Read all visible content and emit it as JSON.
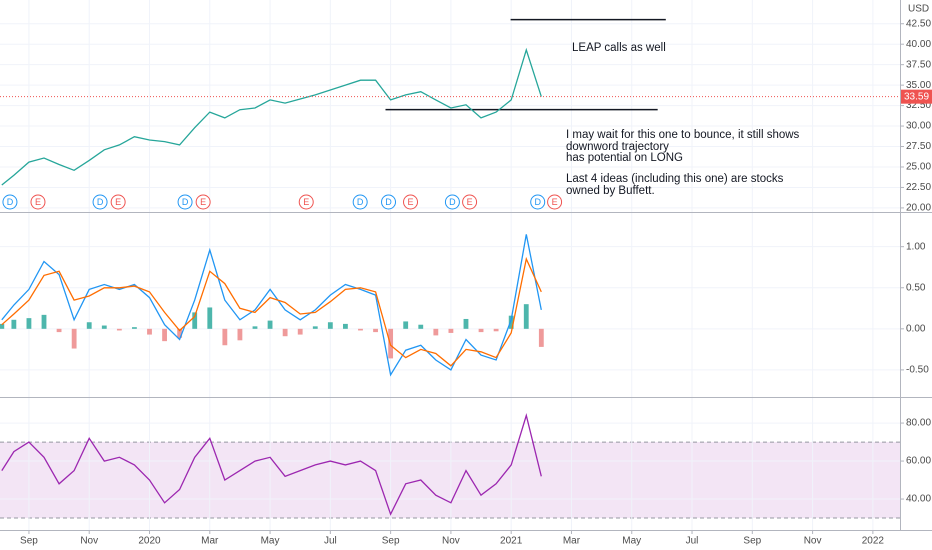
{
  "chart_data": [
    {
      "type": "line",
      "currency": "USD",
      "x": [
        -0.9,
        -0.5,
        0,
        0.5,
        1,
        1.5,
        2,
        2.5,
        3,
        3.5,
        4,
        4.5,
        5,
        5.5,
        6,
        6.5,
        7,
        7.5,
        8,
        8.5,
        9,
        9.5,
        10,
        10.5,
        11,
        11.5,
        12,
        12.5,
        13,
        13.5,
        14,
        14.5,
        15,
        15.5,
        16,
        16.5,
        17
      ],
      "series": [
        {
          "color": "#26a69a",
          "values": [
            22.8,
            24.0,
            25.6,
            26.1,
            25.3,
            24.6,
            25.8,
            27.1,
            27.7,
            28.7,
            28.3,
            28.1,
            27.7,
            29.8,
            31.7,
            31.0,
            32.0,
            32.2,
            33.2,
            32.8,
            33.3,
            33.8,
            34.4,
            35.0,
            35.6,
            35.6,
            33.2,
            33.8,
            34.2,
            33.2,
            32.2,
            32.6,
            31.0,
            31.7,
            33.2,
            39.3,
            33.6
          ]
        }
      ],
      "xlim": [
        -0.96,
        28.9
      ],
      "ylim": [
        19.5,
        45.4
      ],
      "yticks": [
        {
          "value": 20,
          "label": "20.00"
        },
        {
          "value": 22.5,
          "label": "22.50"
        },
        {
          "value": 25,
          "label": "25.00"
        },
        {
          "value": 27.5,
          "label": "27.50"
        },
        {
          "value": 30,
          "label": "30.00"
        },
        {
          "value": 32.5,
          "label": "32.50"
        },
        {
          "value": 35,
          "label": "35.00"
        },
        {
          "value": 37.5,
          "label": "37.50"
        },
        {
          "value": 40,
          "label": "40.00"
        },
        {
          "value": 42.5,
          "label": "42.50"
        }
      ],
      "last_value": 33.59,
      "last_color": "#ef5350",
      "hlines": [
        {
          "value": 43.0,
          "x": [
            15.98,
            21.13
          ]
        },
        {
          "value": 32.0,
          "x": [
            11.83,
            20.86
          ]
        }
      ],
      "events": [
        {
          "label": "D",
          "x": -0.63
        },
        {
          "label": "E",
          "x": 0.3
        },
        {
          "label": "D",
          "x": 2.36
        },
        {
          "label": "E",
          "x": 2.96
        },
        {
          "label": "D",
          "x": 5.18
        },
        {
          "label": "E",
          "x": 5.78
        },
        {
          "label": "E",
          "x": 9.2
        },
        {
          "label": "D",
          "x": 10.99
        },
        {
          "label": "D",
          "x": 11.93
        },
        {
          "label": "E",
          "x": 12.66
        },
        {
          "label": "D",
          "x": 14.05
        },
        {
          "label": "E",
          "x": 14.62
        },
        {
          "label": "D",
          "x": 16.88
        },
        {
          "label": "E",
          "x": 17.44
        }
      ],
      "event_colors": {
        "D": "#2196f3",
        "E": "#ef5350"
      },
      "annotations": [
        "LEAP calls as well",
        "I may wait for this one to bounce, it still shows",
        "downword trajectory",
        "has potential on LONG",
        "Last 4 ideas (including this one) are stocks",
        "owned by Buffett."
      ],
      "grid": true
    },
    {
      "type": "line",
      "x": [
        -0.9,
        -0.5,
        0,
        0.5,
        1,
        1.5,
        2,
        2.5,
        3,
        3.5,
        4,
        4.5,
        5,
        5.5,
        6,
        6.5,
        7,
        7.5,
        8,
        8.5,
        9,
        9.5,
        10,
        10.5,
        11,
        11.5,
        12,
        12.5,
        13,
        13.5,
        14,
        14.5,
        15,
        15.5,
        16,
        16.5,
        17
      ],
      "series": [
        {
          "color": "#2196f3",
          "values": [
            0.11,
            0.29,
            0.48,
            0.82,
            0.66,
            0.11,
            0.48,
            0.54,
            0.48,
            0.54,
            0.38,
            0.05,
            -0.13,
            0.35,
            0.96,
            0.35,
            0.11,
            0.23,
            0.48,
            0.23,
            0.11,
            0.23,
            0.41,
            0.54,
            0.48,
            0.41,
            -0.56,
            -0.26,
            -0.2,
            -0.38,
            -0.5,
            -0.13,
            -0.32,
            -0.38,
            0.11,
            1.15,
            0.23
          ]
        },
        {
          "color": "#ff6d00",
          "values": [
            0.05,
            0.18,
            0.35,
            0.65,
            0.7,
            0.35,
            0.4,
            0.5,
            0.5,
            0.52,
            0.45,
            0.2,
            -0.02,
            0.15,
            0.7,
            0.55,
            0.25,
            0.2,
            0.38,
            0.32,
            0.18,
            0.2,
            0.33,
            0.48,
            0.5,
            0.45,
            -0.2,
            -0.35,
            -0.25,
            -0.3,
            -0.45,
            -0.25,
            -0.28,
            -0.35,
            -0.05,
            0.85,
            0.45
          ]
        }
      ],
      "histogram": {
        "values": [
          0.06,
          0.11,
          0.13,
          0.17,
          -0.04,
          -0.24,
          0.08,
          0.04,
          -0.02,
          0.02,
          -0.07,
          -0.15,
          -0.11,
          0.2,
          0.26,
          -0.2,
          -0.14,
          0.03,
          0.1,
          -0.09,
          -0.07,
          0.03,
          0.08,
          0.06,
          -0.02,
          -0.04,
          -0.36,
          0.09,
          0.05,
          -0.08,
          -0.05,
          0.12,
          -0.04,
          -0.03,
          0.16,
          0.3,
          -0.22
        ],
        "up_color": "#4db6ac",
        "down_color": "#ef9a9a"
      },
      "xlim": [
        -0.96,
        28.9
      ],
      "ylim": [
        -0.83,
        1.41
      ],
      "yticks": [
        {
          "value": 1,
          "label": "1.00"
        },
        {
          "value": 0.5,
          "label": "0.50"
        },
        {
          "value": 0,
          "label": "0.00"
        },
        {
          "value": -0.5,
          "label": "-0.50"
        }
      ],
      "grid": true
    },
    {
      "type": "line",
      "x": [
        -0.9,
        -0.5,
        0,
        0.5,
        1,
        1.5,
        2,
        2.5,
        3,
        3.5,
        4,
        4.5,
        5,
        5.5,
        6,
        6.5,
        7,
        7.5,
        8,
        8.5,
        9,
        9.5,
        10,
        10.5,
        11,
        11.5,
        12,
        12.5,
        13,
        13.5,
        14,
        14.5,
        15,
        15.5,
        16,
        16.5,
        17
      ],
      "series": [
        {
          "color": "#9c27b0",
          "values": [
            55,
            65,
            70,
            62,
            48,
            55,
            72,
            60,
            62,
            58,
            50,
            38,
            45,
            62,
            72,
            50,
            55,
            60,
            62,
            52,
            55,
            58,
            60,
            58,
            60,
            55,
            32,
            48,
            50,
            42,
            38,
            55,
            42,
            48,
            58,
            84,
            52
          ]
        }
      ],
      "band": [
        30,
        70
      ],
      "band_color": "#f3e5f5",
      "xlim": [
        -0.96,
        28.9
      ],
      "ylim": [
        23.7,
        93.2
      ],
      "yticks": [
        {
          "value": 80,
          "label": "80.00"
        },
        {
          "value": 60,
          "label": "60.00"
        },
        {
          "value": 40,
          "label": "40.00"
        }
      ],
      "xticks": [
        {
          "value": 0,
          "label": "Sep"
        },
        {
          "value": 2,
          "label": "Nov"
        },
        {
          "value": 4,
          "label": "2020"
        },
        {
          "value": 6,
          "label": "Mar"
        },
        {
          "value": 8,
          "label": "May"
        },
        {
          "value": 10,
          "label": "Jul"
        },
        {
          "value": 12,
          "label": "Sep"
        },
        {
          "value": 14,
          "label": "Nov"
        },
        {
          "value": 16,
          "label": "2021"
        },
        {
          "value": 18,
          "label": "Mar"
        },
        {
          "value": 20,
          "label": "May"
        },
        {
          "value": 22,
          "label": "Jul"
        },
        {
          "value": 24,
          "label": "Sep"
        },
        {
          "value": 26,
          "label": "Nov"
        },
        {
          "value": 28,
          "label": "2022"
        }
      ],
      "grid": true
    }
  ]
}
